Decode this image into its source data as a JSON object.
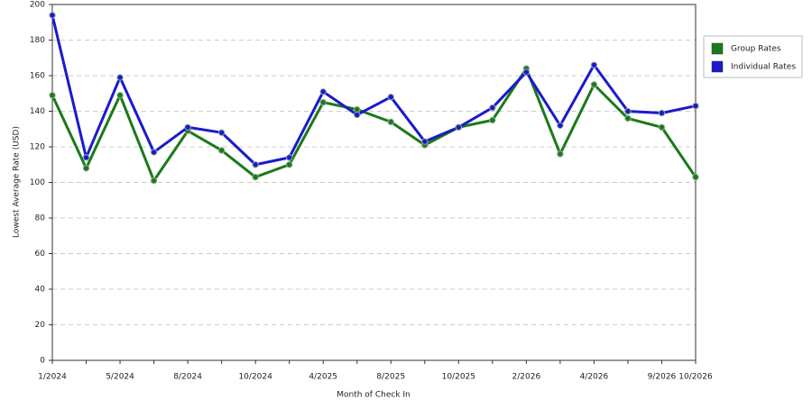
{
  "chart_data": {
    "type": "line",
    "x_label": "Month of Check In",
    "y_label": "Lowest Average Rate (USD)",
    "categories": [
      "1/2024",
      null,
      "5/2024",
      null,
      "8/2024",
      null,
      "10/2024",
      null,
      "4/2025",
      null,
      "8/2025",
      null,
      "10/2025",
      null,
      "2/2026",
      null,
      "4/2026",
      null,
      "9/2026",
      "10/2026"
    ],
    "series": [
      {
        "name": "Group Rates",
        "color": "#1a7a1a",
        "values": [
          149,
          108,
          149,
          101,
          129,
          118,
          103,
          110,
          145,
          141,
          134,
          121,
          131,
          135,
          164,
          116,
          155,
          136,
          131,
          103
        ]
      },
      {
        "name": "Individual Rates",
        "color": "#1a1acc",
        "values": [
          194,
          114,
          159,
          117,
          131,
          128,
          110,
          114,
          151,
          138,
          148,
          123,
          131,
          142,
          162,
          132,
          166,
          140,
          139,
          143
        ]
      }
    ],
    "ylim": [
      0,
      200
    ],
    "yticks": [
      0,
      20,
      40,
      60,
      80,
      100,
      120,
      140,
      160,
      180,
      200
    ],
    "grid": true,
    "legend": "right"
  }
}
